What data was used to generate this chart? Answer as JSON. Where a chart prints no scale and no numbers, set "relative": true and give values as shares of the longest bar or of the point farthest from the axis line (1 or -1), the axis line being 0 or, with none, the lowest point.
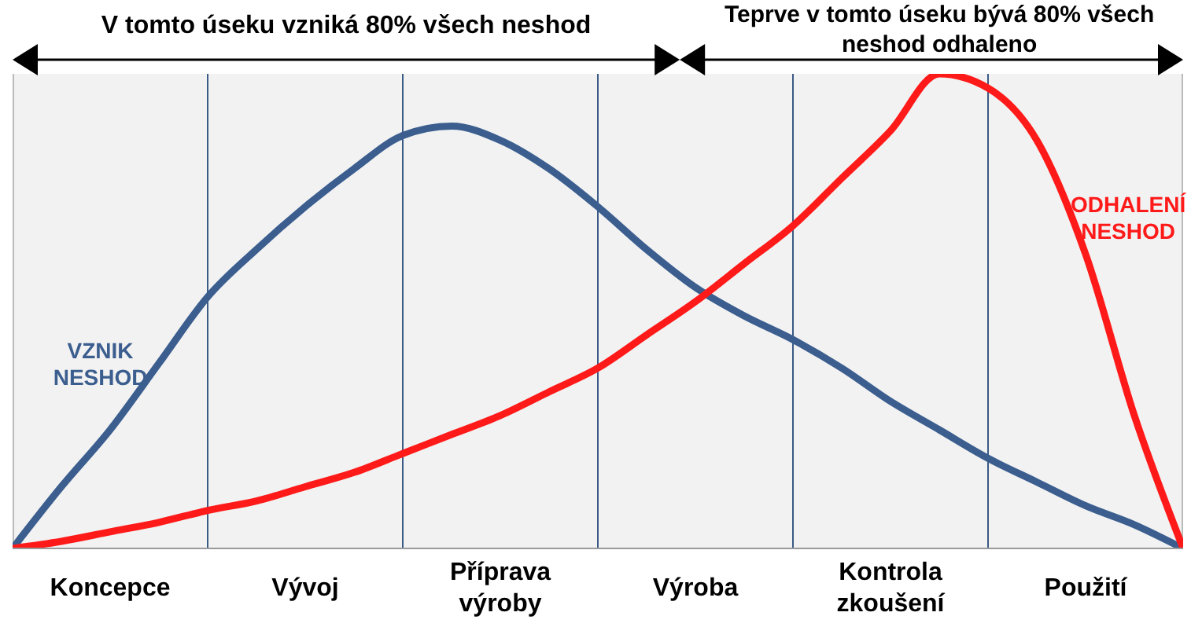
{
  "chart_data": {
    "type": "line",
    "relative": true,
    "annotations": [
      "V tomto úseku vzniká 80% všech neshod",
      "Teprve v tomto úseku bývá 80% všech neshod odhaleno"
    ],
    "categories": [
      null,
      null,
      "Koncepce",
      null,
      null,
      null,
      "Vývoj",
      null,
      null,
      null,
      "Příprava výroby",
      null,
      null,
      null,
      "Výroba",
      null,
      null,
      null,
      "Kontrola zkoušení",
      null,
      null,
      null,
      "Použití",
      null,
      null
    ],
    "series": [
      {
        "name": "VZNIK NESHOD",
        "color": "#3b5e8f",
        "values": [
          0,
          0.13,
          0.25,
          0.39,
          0.53,
          0.63,
          0.72,
          0.8,
          0.87,
          0.89,
          0.86,
          0.8,
          0.72,
          0.63,
          0.55,
          0.49,
          0.44,
          0.38,
          0.31,
          0.25,
          0.19,
          0.14,
          0.09,
          0.05,
          0
        ]
      },
      {
        "name": "ODHALENÍ NESHOD",
        "color": "#ff1a1a",
        "values": [
          0,
          0.015,
          0.035,
          0.055,
          0.08,
          0.1,
          0.13,
          0.16,
          0.2,
          0.24,
          0.28,
          0.33,
          0.38,
          0.45,
          0.52,
          0.6,
          0.68,
          0.78,
          0.88,
          1,
          0.97,
          0.86,
          0.62,
          0.28,
          0
        ]
      }
    ],
    "legend": false,
    "grid": "x",
    "marker": "none",
    "line_style": "solid"
  }
}
